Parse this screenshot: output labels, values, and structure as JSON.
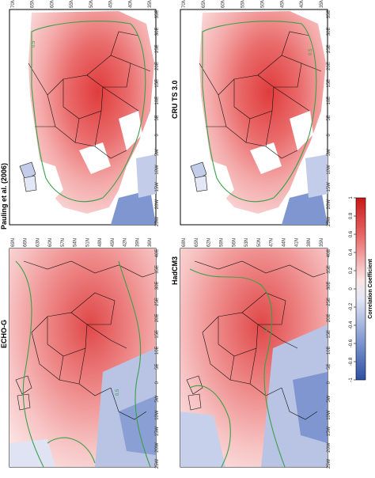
{
  "panels": [
    {
      "id": "pauling",
      "title": "Pauling et al. (2006)",
      "lat_labels": [
        "70N",
        "65N",
        "60N",
        "55N",
        "50N",
        "45N",
        "40N",
        "35N"
      ],
      "lon_labels": [
        "25W",
        "20W",
        "15W",
        "10W",
        "5W",
        "0",
        "5E",
        "10E",
        "15E",
        "20E",
        "25E",
        "30E",
        "35E"
      ]
    },
    {
      "id": "cru",
      "title": "CRU TS 3.0",
      "lat_labels": [
        "70N",
        "65N",
        "60N",
        "55N",
        "50N",
        "45N",
        "40N",
        "35N"
      ],
      "lon_labels": [
        "25W",
        "20W",
        "15W",
        "10W",
        "5W",
        "0",
        "5E",
        "10E",
        "15E",
        "20E",
        "25E",
        "30E",
        "35E"
      ]
    },
    {
      "id": "echo",
      "title": "ECHO-G",
      "lat_labels": [
        "69N",
        "66N",
        "63N",
        "60N",
        "57N",
        "54N",
        "51N",
        "48N",
        "45N",
        "42N",
        "39N",
        "36N"
      ],
      "lon_labels": [
        "25W",
        "20W",
        "15W",
        "10W",
        "5W",
        "0",
        "5E",
        "10E",
        "15E",
        "20E",
        "25E",
        "30E",
        "35E",
        "40E"
      ]
    },
    {
      "id": "hadcm3",
      "title": "HadCM3",
      "lat_labels": [
        "68N",
        "65N",
        "62N",
        "59N",
        "56N",
        "53N",
        "50N",
        "47N",
        "44N",
        "41N",
        "38N",
        "35N"
      ],
      "lon_labels": [
        "25W",
        "20W",
        "15W",
        "10W",
        "5W",
        "0",
        "5E",
        "10E",
        "15E",
        "20E",
        "25E",
        "30E",
        "35E",
        "40E"
      ]
    }
  ],
  "colorbar": {
    "title": "Correlation Coefficient",
    "ticks": [
      "-1",
      "-0.8",
      "-0.6",
      "-0.4",
      "-0.2",
      "0",
      "0.2",
      "0.4",
      "0.6",
      "0.8",
      "1"
    ],
    "range": [
      -1,
      1
    ],
    "colors": [
      "#2d4fa3",
      "#5f7fc4",
      "#95a9d8",
      "#c3cdea",
      "#e4e7f5",
      "#fbe3e3",
      "#f5bcbc",
      "#ef9090",
      "#e86464",
      "#e03c3c",
      "#d42020"
    ]
  },
  "contour_label": "0.5",
  "colors": {
    "contour_green": "#3aa04a",
    "land_border": "#111111",
    "missing_land": "#ffffff"
  }
}
